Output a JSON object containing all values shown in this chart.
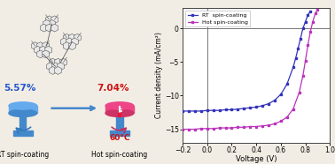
{
  "xlabel": "Voltage (V)",
  "ylabel": "Current density (mA/cm²)",
  "xlim": [
    -0.2,
    1.0
  ],
  "ylim": [
    -17,
    3
  ],
  "yticks": [
    0,
    -5,
    -10,
    -15
  ],
  "xticks": [
    -0.2,
    0.0,
    0.2,
    0.4,
    0.6,
    0.8,
    1.0
  ],
  "legend_rt": "RT  spin-coating",
  "legend_hot": "Hot spin-coating",
  "rt_color": "#3333bb",
  "hot_color": "#bb33bb",
  "bg_color": "#f2ede4",
  "grid_color": "#777777",
  "rt_data_x": [
    -0.2,
    -0.15,
    -0.1,
    -0.05,
    0.0,
    0.05,
    0.1,
    0.15,
    0.2,
    0.25,
    0.3,
    0.35,
    0.4,
    0.45,
    0.5,
    0.55,
    0.6,
    0.65,
    0.7,
    0.72,
    0.74,
    0.76,
    0.78,
    0.8,
    0.82,
    0.84
  ],
  "rt_data_y": [
    -12.3,
    -12.3,
    -12.3,
    -12.3,
    -12.2,
    -12.2,
    -12.2,
    -12.1,
    -12.1,
    -12.0,
    -11.9,
    -11.8,
    -11.7,
    -11.5,
    -11.2,
    -10.7,
    -9.8,
    -8.3,
    -5.8,
    -4.5,
    -3.0,
    -1.5,
    0.0,
    1.0,
    2.0,
    2.5
  ],
  "hot_data_x": [
    -0.2,
    -0.15,
    -0.1,
    -0.05,
    0.0,
    0.05,
    0.1,
    0.15,
    0.2,
    0.25,
    0.3,
    0.35,
    0.4,
    0.45,
    0.5,
    0.55,
    0.6,
    0.65,
    0.7,
    0.75,
    0.78,
    0.8,
    0.82,
    0.84,
    0.86,
    0.88,
    0.9
  ],
  "hot_data_y": [
    -15.0,
    -15.0,
    -15.0,
    -14.9,
    -14.9,
    -14.9,
    -14.8,
    -14.8,
    -14.8,
    -14.7,
    -14.7,
    -14.6,
    -14.6,
    -14.5,
    -14.4,
    -14.2,
    -13.8,
    -13.2,
    -12.0,
    -9.5,
    -7.0,
    -4.8,
    -2.5,
    -0.5,
    1.0,
    2.2,
    2.8
  ],
  "pce_rt": "5.57%",
  "pce_hot": "7.04%",
  "pce_rt_color": "#2255cc",
  "pce_hot_color": "#cc1111",
  "temp_label": "60°C",
  "temp_color": "#cc1111",
  "label_rt": "RT spin-coating",
  "label_hot": "Hot spin-coating",
  "blue_disk_color": "#5599dd",
  "blue_stem_color": "#4488bb",
  "hot_top_color": "#ee3366",
  "hot_disk_color": "#cc88aa",
  "arrow_color": "#4488bb",
  "rot_arrow_color_rt": "#4488bb",
  "rot_arrow_color_hot": "#cc7799"
}
